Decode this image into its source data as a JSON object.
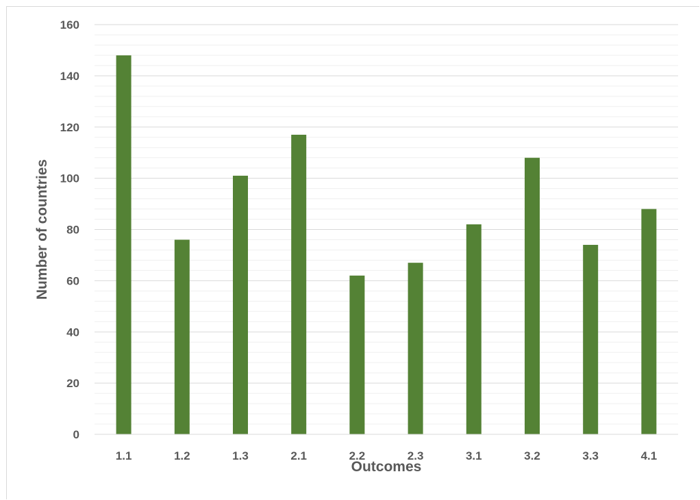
{
  "chart_data": {
    "type": "bar",
    "categories": [
      "1.1",
      "1.2",
      "1.3",
      "2.1",
      "2.2",
      "2.3",
      "3.1",
      "3.2",
      "3.3",
      "4.1"
    ],
    "values": [
      148,
      76,
      101,
      117,
      62,
      67,
      82,
      108,
      74,
      88
    ],
    "title": "",
    "xlabel": "Outcomes",
    "ylabel": "Number of countries",
    "ylim": [
      0,
      160
    ],
    "yticks": [
      0,
      20,
      40,
      60,
      80,
      100,
      120,
      140,
      160
    ],
    "grid": true,
    "minor_grid": true,
    "legend": "none",
    "bar_color": "#548235",
    "gridline_color": "#d9d9d9"
  }
}
